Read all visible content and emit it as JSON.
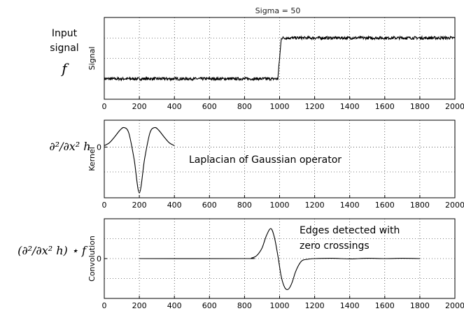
{
  "title": "Sigma = 50",
  "left_labels": {
    "input_line1": "Input",
    "input_line2": "signal",
    "input_symbol": "f",
    "kernel_label": "∂²/∂x² h",
    "conv_label": "(∂²/∂x² h) ⋆ f"
  },
  "annotations": {
    "log_operator": "Laplacian of Gaussian operator",
    "edges_line1": "Edges detected with",
    "edges_line2": "zero crossings"
  },
  "chart_data": [
    {
      "type": "line",
      "title": "Sigma = 50",
      "ylabel": "Signal",
      "xlim": [
        0,
        2000
      ],
      "xticks": [
        0,
        200,
        400,
        600,
        800,
        1000,
        1200,
        1400,
        1600,
        1800,
        2000
      ],
      "grid": true,
      "series": [
        {
          "x": [
            0,
            990,
            1010,
            2000
          ],
          "y": [
            0,
            0,
            1,
            1
          ],
          "noise": "small random noise on both levels"
        }
      ]
    },
    {
      "type": "line",
      "ylabel": "Kernel",
      "yticks": [
        0
      ],
      "xlim": [
        0,
        2000
      ],
      "xticks": [
        0,
        200,
        400,
        600,
        800,
        1000,
        1200,
        1400,
        1600,
        1800,
        2000
      ],
      "grid": true,
      "series": [
        {
          "x": [
            0,
            30,
            60,
            90,
            113,
            140,
            170,
            200,
            230,
            260,
            287,
            310,
            340,
            370,
            400
          ],
          "y": [
            0.07,
            0.22,
            0.52,
            0.85,
            0.98,
            0.7,
            -0.6,
            -2.3,
            -0.6,
            0.7,
            0.98,
            0.85,
            0.52,
            0.22,
            0.07
          ]
        }
      ]
    },
    {
      "type": "line",
      "ylabel": "Convolution",
      "yticks": [
        0
      ],
      "xlim": [
        0,
        2000
      ],
      "xticks": [
        0,
        200,
        400,
        600,
        800,
        1000,
        1200,
        1400,
        1600,
        1800,
        2000
      ],
      "grid": true,
      "series": [
        {
          "x": [
            200,
            800,
            840,
            870,
            900,
            925,
            950,
            970,
            990,
            1010,
            1030,
            1050,
            1070,
            1090,
            1110,
            1130,
            1160,
            1200,
            1300,
            1400,
            1500,
            1600,
            1700,
            1800
          ],
          "y": [
            0,
            0,
            0.02,
            0.1,
            0.35,
            0.75,
            0.98,
            0.7,
            0.1,
            -0.6,
            -0.95,
            -1.0,
            -0.8,
            -0.45,
            -0.2,
            -0.06,
            -0.02,
            0,
            0.01,
            -0.01,
            0.01,
            0,
            0.01,
            0
          ]
        }
      ]
    }
  ]
}
